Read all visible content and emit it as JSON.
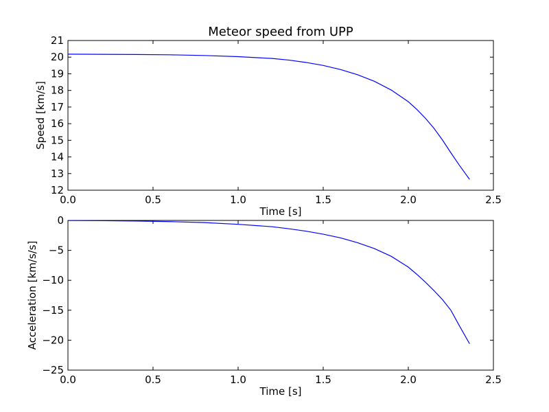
{
  "chart_data": [
    {
      "type": "line",
      "title": "Meteor speed from  UPP",
      "xlabel": "Time [s]",
      "ylabel": "Speed [km/s]",
      "xlim": [
        0,
        2.5
      ],
      "ylim": [
        12,
        21
      ],
      "xticks": [
        "0.0",
        "0.5",
        "1.0",
        "1.5",
        "2.0",
        "2.5"
      ],
      "yticks": [
        "12",
        "13",
        "14",
        "15",
        "16",
        "17",
        "18",
        "19",
        "20",
        "21"
      ],
      "grid": false,
      "line_color": "#0000ff",
      "series": [
        {
          "x": [
            0.0,
            0.2,
            0.4,
            0.6,
            0.8,
            1.0,
            1.2,
            1.3,
            1.4,
            1.5,
            1.6,
            1.7,
            1.8,
            1.9,
            2.0,
            2.05,
            2.1,
            2.15,
            2.2,
            2.25,
            2.3,
            2.36
          ],
          "values": [
            20.18,
            20.17,
            20.16,
            20.14,
            20.1,
            20.03,
            19.92,
            19.82,
            19.68,
            19.5,
            19.26,
            18.95,
            18.55,
            18.02,
            17.32,
            16.86,
            16.33,
            15.73,
            15.03,
            14.25,
            13.5,
            12.65
          ]
        }
      ]
    },
    {
      "type": "line",
      "title": "",
      "xlabel": "Time [s]",
      "ylabel": "Acceleration [km/s/s]",
      "xlim": [
        0,
        2.5
      ],
      "ylim": [
        -25,
        0
      ],
      "xticks": [
        "0.0",
        "0.5",
        "1.0",
        "1.5",
        "2.0",
        "2.5"
      ],
      "yticks": [
        "0",
        "−5",
        "−10",
        "−15",
        "−20",
        "−25"
      ],
      "grid": false,
      "line_color": "#0000ff",
      "series": [
        {
          "x": [
            0.0,
            0.2,
            0.4,
            0.6,
            0.8,
            1.0,
            1.2,
            1.3,
            1.4,
            1.5,
            1.6,
            1.7,
            1.8,
            1.9,
            2.0,
            2.05,
            2.1,
            2.15,
            2.2,
            2.25,
            2.3,
            2.36
          ],
          "values": [
            -0.02,
            -0.05,
            -0.1,
            -0.2,
            -0.36,
            -0.65,
            -1.05,
            -1.4,
            -1.8,
            -2.3,
            -2.9,
            -3.7,
            -4.7,
            -6.0,
            -7.8,
            -9.0,
            -10.3,
            -11.7,
            -13.2,
            -15.0,
            -17.6,
            -20.6
          ]
        }
      ]
    }
  ]
}
